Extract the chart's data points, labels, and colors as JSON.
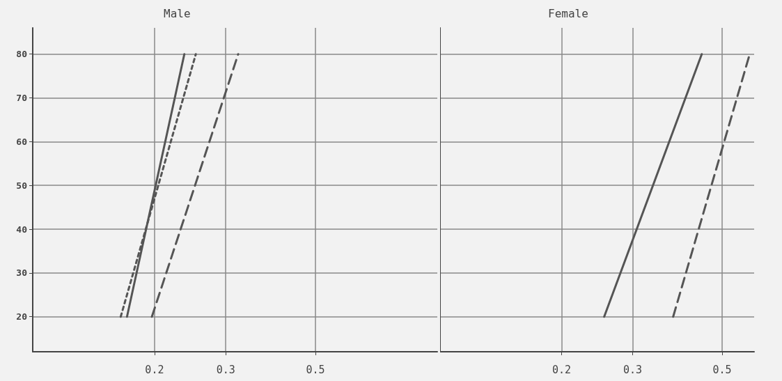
{
  "chart_data": [
    {
      "type": "line",
      "title": "Male",
      "log": "x",
      "xlim": [
        0.1,
        1.0
      ],
      "xticks": [
        0.2,
        0.3,
        0.5
      ],
      "ylim": [
        12,
        86
      ],
      "yticks": [
        20,
        30,
        40,
        50,
        60,
        70,
        80
      ],
      "grid": true,
      "marker": "none",
      "series": [
        {
          "color": "#555555",
          "line_style": "solid",
          "x": [
            0.171,
            0.237
          ],
          "values": [
            20,
            80
          ]
        },
        {
          "color": "#555555",
          "line_style": "dotted",
          "x": [
            0.165,
            0.253
          ],
          "values": [
            20,
            80
          ]
        },
        {
          "color": "#555555",
          "line_style": "dashed",
          "x": [
            0.197,
            0.322
          ],
          "values": [
            20,
            80
          ]
        }
      ]
    },
    {
      "type": "line",
      "title": "Female",
      "log": "x",
      "xlim": [
        0.1,
        0.6
      ],
      "xticks": [
        0.2,
        0.3,
        0.5
      ],
      "ylim": [
        12,
        86
      ],
      "yticks": [
        20,
        30,
        40,
        50,
        60,
        70,
        80
      ],
      "grid": true,
      "marker": "none",
      "tick_labels": "x",
      "series": [
        {
          "color": "#555555",
          "line_style": "solid",
          "x": [
            0.255,
            0.445
          ],
          "values": [
            20,
            80
          ]
        },
        {
          "color": "#555555",
          "line_style": "dashed",
          "x": [
            0.378,
            0.585
          ],
          "values": [
            20,
            80
          ]
        }
      ]
    }
  ]
}
